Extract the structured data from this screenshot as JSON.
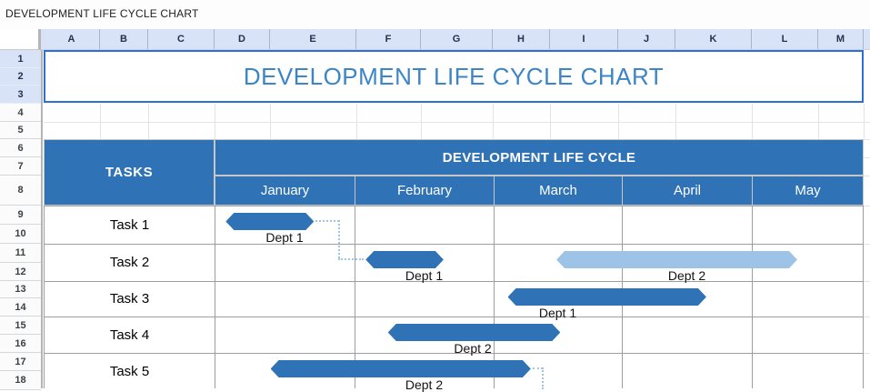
{
  "window": {
    "title": "DEVELOPMENT LIFE CYCLE CHART"
  },
  "sheet": {
    "column_letters": [
      "A",
      "B",
      "C",
      "D",
      "E",
      "F",
      "G",
      "H",
      "I",
      "J",
      "K",
      "L",
      "M"
    ],
    "row_numbers": [
      "1",
      "2",
      "3",
      "4",
      "5",
      "6",
      "7",
      "8",
      "9",
      "10",
      "11",
      "12",
      "13",
      "14",
      "15",
      "16",
      "17",
      "18"
    ],
    "selected_rows": [
      1,
      2,
      3
    ],
    "title_cell": {
      "text": "DEVELOPMENT LIFE CYCLE CHART"
    }
  },
  "chart_data": {
    "type": "gantt",
    "title": "DEVELOPMENT LIFE CYCLE CHART",
    "table_header": {
      "tasks_label": "TASKS",
      "group_label": "DEVELOPMENT LIFE CYCLE"
    },
    "months": [
      "January",
      "February",
      "March",
      "April",
      "May"
    ],
    "tasks": [
      {
        "name": "Task 1",
        "bars": [
          {
            "label": "Dept 1",
            "start_month": 0.08,
            "end_month": 0.71,
            "shade": "dark",
            "label_center_month": 0.5
          }
        ]
      },
      {
        "name": "Task 2",
        "bars": [
          {
            "label": "Dept 1",
            "start_month": 1.08,
            "end_month": 1.64,
            "shade": "dark",
            "label_center_month": 1.5
          },
          {
            "label": "Dept 2",
            "start_month": 2.49,
            "end_month": 4.41,
            "shade": "light",
            "label_center_month": 3.5
          }
        ]
      },
      {
        "name": "Task 3",
        "bars": [
          {
            "label": "Dept 1",
            "start_month": 2.11,
            "end_month": 3.65,
            "shade": "dark",
            "label_center_month": 2.5
          }
        ]
      },
      {
        "name": "Task 4",
        "bars": [
          {
            "label": "Dept 2",
            "start_month": 1.24,
            "end_month": 2.52,
            "shade": "dark",
            "label_center_month": 1.85
          }
        ]
      },
      {
        "name": "Task 5",
        "bars": [
          {
            "label": "Dept 2",
            "start_month": 0.4,
            "end_month": 2.29,
            "shade": "dark",
            "label_center_month": 1.5
          }
        ]
      }
    ],
    "connectors": [
      {
        "from_task": 0,
        "from_bar": 0,
        "to_task": 1,
        "to_bar": 0
      },
      {
        "from_task": 4,
        "from_bar": 0,
        "offscreen_down": true
      }
    ]
  },
  "colors": {
    "header_fill": "#2F72B5",
    "bar_dark": "#2F72B5",
    "bar_light": "#9DC3E6",
    "title_text": "#3C85C6",
    "selection_border": "#2C6FD6",
    "selected_header_bg": "#D8E3F8",
    "connector": "#9FC5E8"
  }
}
